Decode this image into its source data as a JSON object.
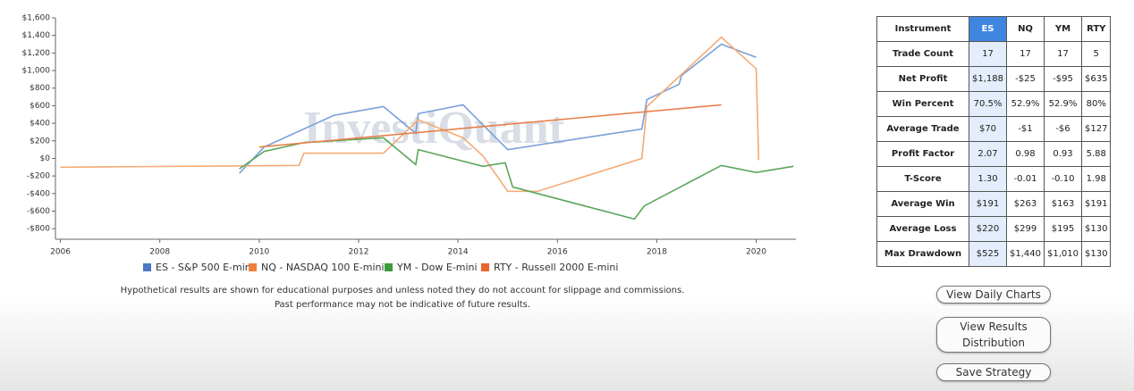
{
  "chart_data": {
    "type": "line",
    "watermark": "InvestiQuant",
    "xlim": [
      2005.9,
      2020.8
    ],
    "xticks": [
      2006,
      2008,
      2010,
      2012,
      2014,
      2016,
      2018,
      2020
    ],
    "ylim": [
      -920,
      1600
    ],
    "yticks": [
      {
        "value": 1600,
        "label": "$1,600"
      },
      {
        "value": 1400,
        "label": "$1,400"
      },
      {
        "value": 1200,
        "label": "$1,200"
      },
      {
        "value": 1000,
        "label": "$1,000"
      },
      {
        "value": 800,
        "label": "$800"
      },
      {
        "value": 600,
        "label": "$600"
      },
      {
        "value": 400,
        "label": "$400"
      },
      {
        "value": 200,
        "label": "$200"
      },
      {
        "value": 0,
        "label": "$0"
      },
      {
        "value": -200,
        "label": "-$200"
      },
      {
        "value": -400,
        "label": "-$400"
      },
      {
        "value": -600,
        "label": "-$600"
      },
      {
        "value": -800,
        "label": "-$800"
      }
    ],
    "series": [
      {
        "name": "ES - S&P 500 E-mini",
        "color": "#7aa0d8",
        "legend_color": "#4a78c2",
        "x": [
          2009.6,
          2010.1,
          2011.5,
          2012.5,
          2013.15,
          2013.2,
          2014.1,
          2015.0,
          2017.7,
          2017.8,
          2018.45,
          2018.5,
          2019.3,
          2020.0
        ],
        "values": [
          -170,
          130,
          490,
          590,
          285,
          510,
          610,
          100,
          335,
          670,
          845,
          945,
          1300,
          1150
        ]
      },
      {
        "name": "NQ - NASDAQ 100 E-mini",
        "color": "#f5aa74",
        "legend_color": "#f07f3c",
        "x": [
          2006.0,
          2010.8,
          2010.9,
          2012.5,
          2013.2,
          2014.1,
          2014.5,
          2015.0,
          2015.6,
          2017.7,
          2017.8,
          2019.3,
          2020.0,
          2020.05
        ],
        "values": [
          -100,
          -80,
          60,
          60,
          440,
          235,
          30,
          -375,
          -375,
          0,
          590,
          1380,
          1020,
          -20
        ]
      },
      {
        "name": "YM - Dow E-mini",
        "color": "#5aa65a",
        "legend_color": "#3c9c3c",
        "x": [
          2009.6,
          2010.1,
          2010.9,
          2012.5,
          2013.15,
          2013.2,
          2014.5,
          2014.95,
          2015.1,
          2017.55,
          2017.75,
          2019.3,
          2020.0,
          2020.75
        ],
        "values": [
          -120,
          80,
          180,
          235,
          -70,
          100,
          -90,
          -50,
          -325,
          -690,
          -540,
          -80,
          -160,
          -90
        ]
      },
      {
        "name": "RTY - Russell 2000 E-mini",
        "color": "#e8804a",
        "legend_color": "#e8652e",
        "x": [
          2010.0,
          2019.3
        ],
        "values": [
          130,
          610
        ]
      }
    ]
  },
  "disclaimer": [
    "Hypothetical results are shown for educational purposes and unless noted they do not account for slippage and commissions.",
    "Past performance may not be indicative of future results."
  ],
  "table": {
    "header": [
      "Instrument",
      "ES",
      "NQ",
      "YM",
      "RTY"
    ],
    "rows": [
      [
        "Trade Count",
        "17",
        "17",
        "17",
        "5"
      ],
      [
        "Net Profit",
        "$1,188",
        "-$25",
        "-$95",
        "$635"
      ],
      [
        "Win Percent",
        "70.5%",
        "52.9%",
        "52.9%",
        "80%"
      ],
      [
        "Average Trade",
        "$70",
        "-$1",
        "-$6",
        "$127"
      ],
      [
        "Profit Factor",
        "2.07",
        "0.98",
        "0.93",
        "5.88"
      ],
      [
        "T-Score",
        "1.30",
        "-0.01",
        "-0.10",
        "1.98"
      ],
      [
        "Average Win",
        "$191",
        "$263",
        "$163",
        "$191"
      ],
      [
        "Average Loss",
        "$220",
        "$299",
        "$195",
        "$130"
      ],
      [
        "Max Drawdown",
        "$525",
        "$1,440",
        "$1,010",
        "$130"
      ]
    ]
  },
  "buttons": [
    "View Daily Charts",
    "View Results Distribution",
    "Save Strategy"
  ]
}
